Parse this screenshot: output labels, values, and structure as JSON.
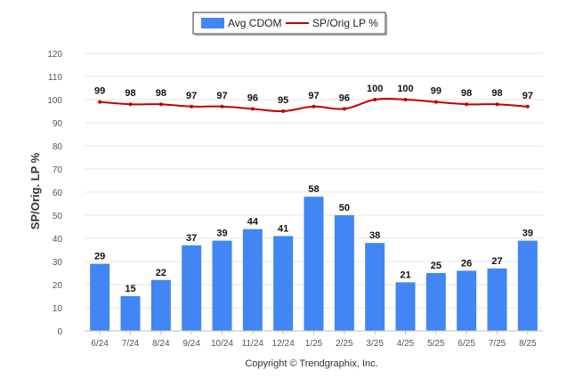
{
  "chart_data": {
    "type": "bar",
    "categories": [
      "6/24",
      "7/24",
      "8/24",
      "9/24",
      "10/24",
      "11/24",
      "12/24",
      "1/25",
      "2/25",
      "3/25",
      "4/25",
      "5/25",
      "6/25",
      "7/25",
      "8/25"
    ],
    "series": [
      {
        "name": "Avg CDOM",
        "kind": "bar",
        "color": "#4285f4",
        "values": [
          29,
          15,
          22,
          37,
          39,
          44,
          41,
          58,
          50,
          38,
          21,
          25,
          26,
          27,
          39
        ]
      },
      {
        "name": "SP/Orig LP %",
        "kind": "line",
        "color": "#c00000",
        "values": [
          99,
          98,
          98,
          97,
          97,
          96,
          95,
          97,
          96,
          100,
          100,
          99,
          98,
          98,
          97
        ]
      }
    ],
    "ylabel": "SP/Orig. LP %",
    "xlabel": "",
    "ylim": [
      0,
      120
    ],
    "yticks": [
      0,
      10,
      20,
      30,
      40,
      50,
      60,
      70,
      80,
      90,
      100,
      110,
      120
    ],
    "grid": true,
    "legend_position": "top-center",
    "credit": "Copyright © Trendgraphix, Inc."
  }
}
